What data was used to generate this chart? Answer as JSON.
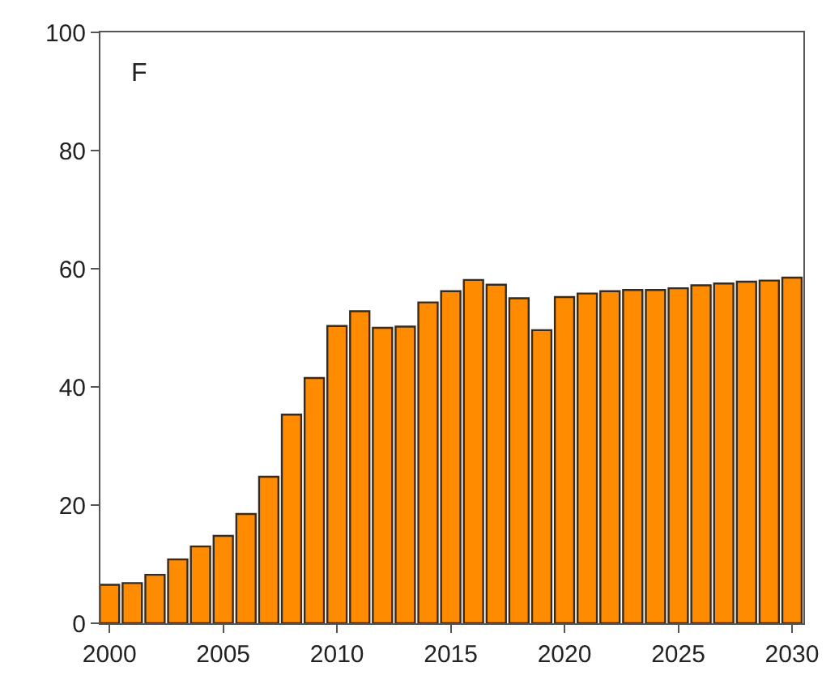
{
  "chart_data": {
    "type": "bar",
    "x": [
      2000,
      2001,
      2002,
      2003,
      2004,
      2005,
      2006,
      2007,
      2008,
      2009,
      2010,
      2011,
      2012,
      2013,
      2014,
      2015,
      2016,
      2017,
      2018,
      2019,
      2020,
      2021,
      2022,
      2023,
      2024,
      2025,
      2026,
      2027,
      2028,
      2029,
      2030
    ],
    "series": [
      {
        "color": "#ff8c00",
        "values": [
          6.5,
          6.8,
          8.2,
          10.8,
          13,
          14.8,
          18.5,
          24.8,
          35.3,
          41.5,
          50.3,
          52.8,
          50,
          50.2,
          54.3,
          56.2,
          58.1,
          57.3,
          55,
          49.6,
          55.2,
          55.8,
          56.2,
          56.4,
          56.4,
          56.7,
          57.2,
          57.5,
          57.8,
          58,
          58.5
        ]
      }
    ],
    "xlim": [
      1999.6,
      2030.5
    ],
    "ylim": [
      0,
      100
    ],
    "xticks": [
      2000,
      2005,
      2010,
      2015,
      2020,
      2025,
      2030
    ],
    "yticks": [
      0,
      20,
      40,
      60,
      80,
      100
    ],
    "annotations": [
      "F"
    ]
  }
}
